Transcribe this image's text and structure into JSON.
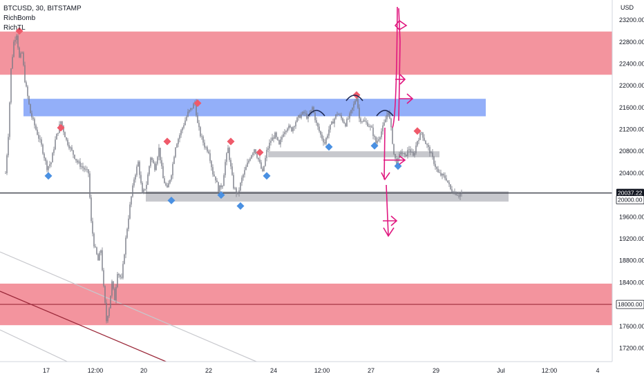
{
  "legend": {
    "symbol_line": "BTCUSD, 30, BITSTAMP",
    "indicator_1": "RichBomb",
    "indicator_2": "RichTL"
  },
  "chart_data": {
    "type": "candlestick",
    "symbol": "BTCUSD",
    "interval": "30",
    "exchange": "BITSTAMP",
    "currency_label": "USD",
    "y_ticks": [
      23200,
      22800,
      22400,
      22000,
      21600,
      21200,
      20800,
      20400,
      19600,
      19200,
      18800,
      18400,
      17600,
      17200
    ],
    "ylim": [
      17050,
      23450
    ],
    "x_ticks": [
      "17",
      "12:00",
      "20",
      "22",
      "24",
      "12:00",
      "27",
      "29",
      "Jul",
      "12:00",
      "4"
    ],
    "price_labels": [
      {
        "value": 20037.22,
        "text": "20037.22",
        "style": "dark"
      },
      {
        "value": 20000.0,
        "text": "20000.00",
        "style": "light"
      },
      {
        "value": 18000.0,
        "text": "18000.00",
        "style": "light"
      }
    ],
    "price_path": [
      {
        "i": 0,
        "p": 20400
      },
      {
        "i": 2,
        "p": 21100
      },
      {
        "i": 4,
        "p": 22300
      },
      {
        "i": 6,
        "p": 22800
      },
      {
        "i": 8,
        "p": 22950
      },
      {
        "i": 10,
        "p": 22500
      },
      {
        "i": 12,
        "p": 22600
      },
      {
        "i": 14,
        "p": 22100
      },
      {
        "i": 16,
        "p": 21800
      },
      {
        "i": 18,
        "p": 21500
      },
      {
        "i": 22,
        "p": 21200
      },
      {
        "i": 26,
        "p": 20900
      },
      {
        "i": 30,
        "p": 20500
      },
      {
        "i": 33,
        "p": 20600
      },
      {
        "i": 36,
        "p": 21000
      },
      {
        "i": 40,
        "p": 21350
      },
      {
        "i": 44,
        "p": 21000
      },
      {
        "i": 48,
        "p": 20800
      },
      {
        "i": 52,
        "p": 20600
      },
      {
        "i": 56,
        "p": 20500
      },
      {
        "i": 60,
        "p": 20400
      },
      {
        "i": 62,
        "p": 19500
      },
      {
        "i": 64,
        "p": 19100
      },
      {
        "i": 67,
        "p": 18800
      },
      {
        "i": 69,
        "p": 19000
      },
      {
        "i": 71,
        "p": 18300
      },
      {
        "i": 73,
        "p": 17700
      },
      {
        "i": 75,
        "p": 17950
      },
      {
        "i": 77,
        "p": 18400
      },
      {
        "i": 79,
        "p": 18100
      },
      {
        "i": 81,
        "p": 18600
      },
      {
        "i": 84,
        "p": 18450
      },
      {
        "i": 87,
        "p": 19200
      },
      {
        "i": 90,
        "p": 19800
      },
      {
        "i": 93,
        "p": 20300
      },
      {
        "i": 96,
        "p": 20600
      },
      {
        "i": 99,
        "p": 20000
      },
      {
        "i": 102,
        "p": 20200
      },
      {
        "i": 105,
        "p": 20700
      },
      {
        "i": 108,
        "p": 20500
      },
      {
        "i": 111,
        "p": 20850
      },
      {
        "i": 114,
        "p": 20300
      },
      {
        "i": 117,
        "p": 20100
      },
      {
        "i": 120,
        "p": 20400
      },
      {
        "i": 123,
        "p": 20900
      },
      {
        "i": 126,
        "p": 21100
      },
      {
        "i": 129,
        "p": 21300
      },
      {
        "i": 132,
        "p": 21500
      },
      {
        "i": 135,
        "p": 21600
      },
      {
        "i": 137,
        "p": 21700
      },
      {
        "i": 139,
        "p": 21300
      },
      {
        "i": 141,
        "p": 21100
      },
      {
        "i": 144,
        "p": 20900
      },
      {
        "i": 147,
        "p": 20800
      },
      {
        "i": 150,
        "p": 20400
      },
      {
        "i": 152,
        "p": 20300
      },
      {
        "i": 154,
        "p": 20100
      },
      {
        "i": 157,
        "p": 20200
      },
      {
        "i": 159,
        "p": 20600
      },
      {
        "i": 161,
        "p": 20850
      },
      {
        "i": 163,
        "p": 20500
      },
      {
        "i": 165,
        "p": 20150
      },
      {
        "i": 168,
        "p": 20000
      },
      {
        "i": 171,
        "p": 20300
      },
      {
        "i": 174,
        "p": 20500
      },
      {
        "i": 177,
        "p": 20700
      },
      {
        "i": 180,
        "p": 20850
      },
      {
        "i": 183,
        "p": 20650
      },
      {
        "i": 186,
        "p": 20400
      },
      {
        "i": 189,
        "p": 20800
      },
      {
        "i": 192,
        "p": 21000
      },
      {
        "i": 195,
        "p": 21100
      },
      {
        "i": 198,
        "p": 20900
      },
      {
        "i": 201,
        "p": 21150
      },
      {
        "i": 204,
        "p": 21250
      },
      {
        "i": 207,
        "p": 21200
      },
      {
        "i": 210,
        "p": 21350
      },
      {
        "i": 213,
        "p": 21450
      },
      {
        "i": 216,
        "p": 21500
      },
      {
        "i": 219,
        "p": 21400
      },
      {
        "i": 222,
        "p": 21600
      },
      {
        "i": 225,
        "p": 21300
      },
      {
        "i": 228,
        "p": 21100
      },
      {
        "i": 231,
        "p": 20950
      },
      {
        "i": 234,
        "p": 21200
      },
      {
        "i": 237,
        "p": 21350
      },
      {
        "i": 240,
        "p": 21500
      },
      {
        "i": 243,
        "p": 21400
      },
      {
        "i": 246,
        "p": 21300
      },
      {
        "i": 249,
        "p": 21450
      },
      {
        "i": 252,
        "p": 21650
      },
      {
        "i": 254,
        "p": 21820
      },
      {
        "i": 256,
        "p": 21400
      },
      {
        "i": 259,
        "p": 21350
      },
      {
        "i": 262,
        "p": 21300
      },
      {
        "i": 265,
        "p": 21200
      },
      {
        "i": 268,
        "p": 20950
      },
      {
        "i": 271,
        "p": 21100
      },
      {
        "i": 274,
        "p": 21300
      },
      {
        "i": 277,
        "p": 21550
      },
      {
        "i": 279,
        "p": 21200
      },
      {
        "i": 281,
        "p": 20750
      },
      {
        "i": 283,
        "p": 20550
      },
      {
        "i": 286,
        "p": 20800
      },
      {
        "i": 289,
        "p": 20700
      },
      {
        "i": 292,
        "p": 20850
      },
      {
        "i": 295,
        "p": 20700
      },
      {
        "i": 298,
        "p": 21000
      },
      {
        "i": 301,
        "p": 21150
      },
      {
        "i": 304,
        "p": 20950
      },
      {
        "i": 307,
        "p": 20800
      },
      {
        "i": 310,
        "p": 20600
      },
      {
        "i": 313,
        "p": 20400
      },
      {
        "i": 316,
        "p": 20350
      },
      {
        "i": 319,
        "p": 20300
      },
      {
        "i": 322,
        "p": 20100
      },
      {
        "i": 325,
        "p": 20050
      },
      {
        "i": 328,
        "p": 20000
      },
      {
        "i": 330,
        "p": 20037
      }
    ],
    "zones": [
      {
        "name": "upper-red-zone",
        "color": "#f28b96",
        "y_from": 22200,
        "y_to": 22990
      },
      {
        "name": "blue-resistance-zone",
        "color": "#8aa8f8",
        "y_from": 21440,
        "y_to": 21760
      },
      {
        "name": "grey-zone-upper",
        "color": "#c2c3c9",
        "y_from": 20690,
        "y_to": 20800
      },
      {
        "name": "grey-support-zone",
        "color": "#c2c3c9",
        "y_from": 19880,
        "y_to": 20070
      },
      {
        "name": "lower-red-zone",
        "color": "#f28b96",
        "y_from": 17620,
        "y_to": 18380
      }
    ],
    "horizontal_lines": [
      {
        "value": 20037.22,
        "color": "#131722"
      },
      {
        "value": 18000,
        "color": "#9c2a3b"
      }
    ],
    "markers": [
      {
        "type": "sell",
        "i": 10,
        "p": 23000
      },
      {
        "type": "buy",
        "i": 31,
        "p": 20350
      },
      {
        "type": "sell",
        "i": 40,
        "p": 21230
      },
      {
        "type": "sell",
        "i": 117,
        "p": 20980
      },
      {
        "type": "buy",
        "i": 120,
        "p": 19900
      },
      {
        "type": "sell",
        "i": 139,
        "p": 21680
      },
      {
        "type": "buy",
        "i": 156,
        "p": 20000
      },
      {
        "type": "sell",
        "i": 163,
        "p": 20980
      },
      {
        "type": "buy",
        "i": 170,
        "p": 19800
      },
      {
        "type": "sell",
        "i": 184,
        "p": 20780
      },
      {
        "type": "buy",
        "i": 189,
        "p": 20350
      },
      {
        "type": "buy",
        "i": 234,
        "p": 20880
      },
      {
        "type": "sell",
        "i": 254,
        "p": 21830
      },
      {
        "type": "buy",
        "i": 267,
        "p": 20900
      },
      {
        "type": "buy",
        "i": 284,
        "p": 20530
      },
      {
        "type": "sell",
        "i": 298,
        "p": 21170
      }
    ],
    "candle_color": "#787b86",
    "marker_colors": {
      "sell": "#ef5a6a",
      "buy": "#4a90e2",
      "pivot": "#8a7f80"
    },
    "drawing_color": "#e0177f"
  }
}
